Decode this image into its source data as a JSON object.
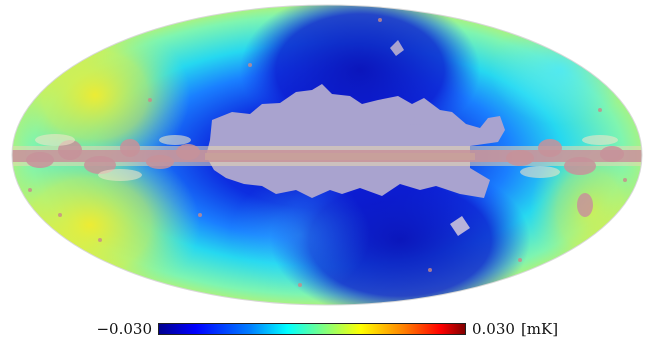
{
  "colorbar": {
    "min_label": "−0.030",
    "max_label": "0.030",
    "unit_label": "[mK]",
    "colors": [
      "#00008f",
      "#0000ff",
      "#0080ff",
      "#00ffff",
      "#80ff80",
      "#ffff00",
      "#ff8000",
      "#ff0000",
      "#800000"
    ]
  },
  "map": {
    "projection": "mollweide",
    "mask_color": "#a9a3cf",
    "plane_color": "#c7929a"
  }
}
